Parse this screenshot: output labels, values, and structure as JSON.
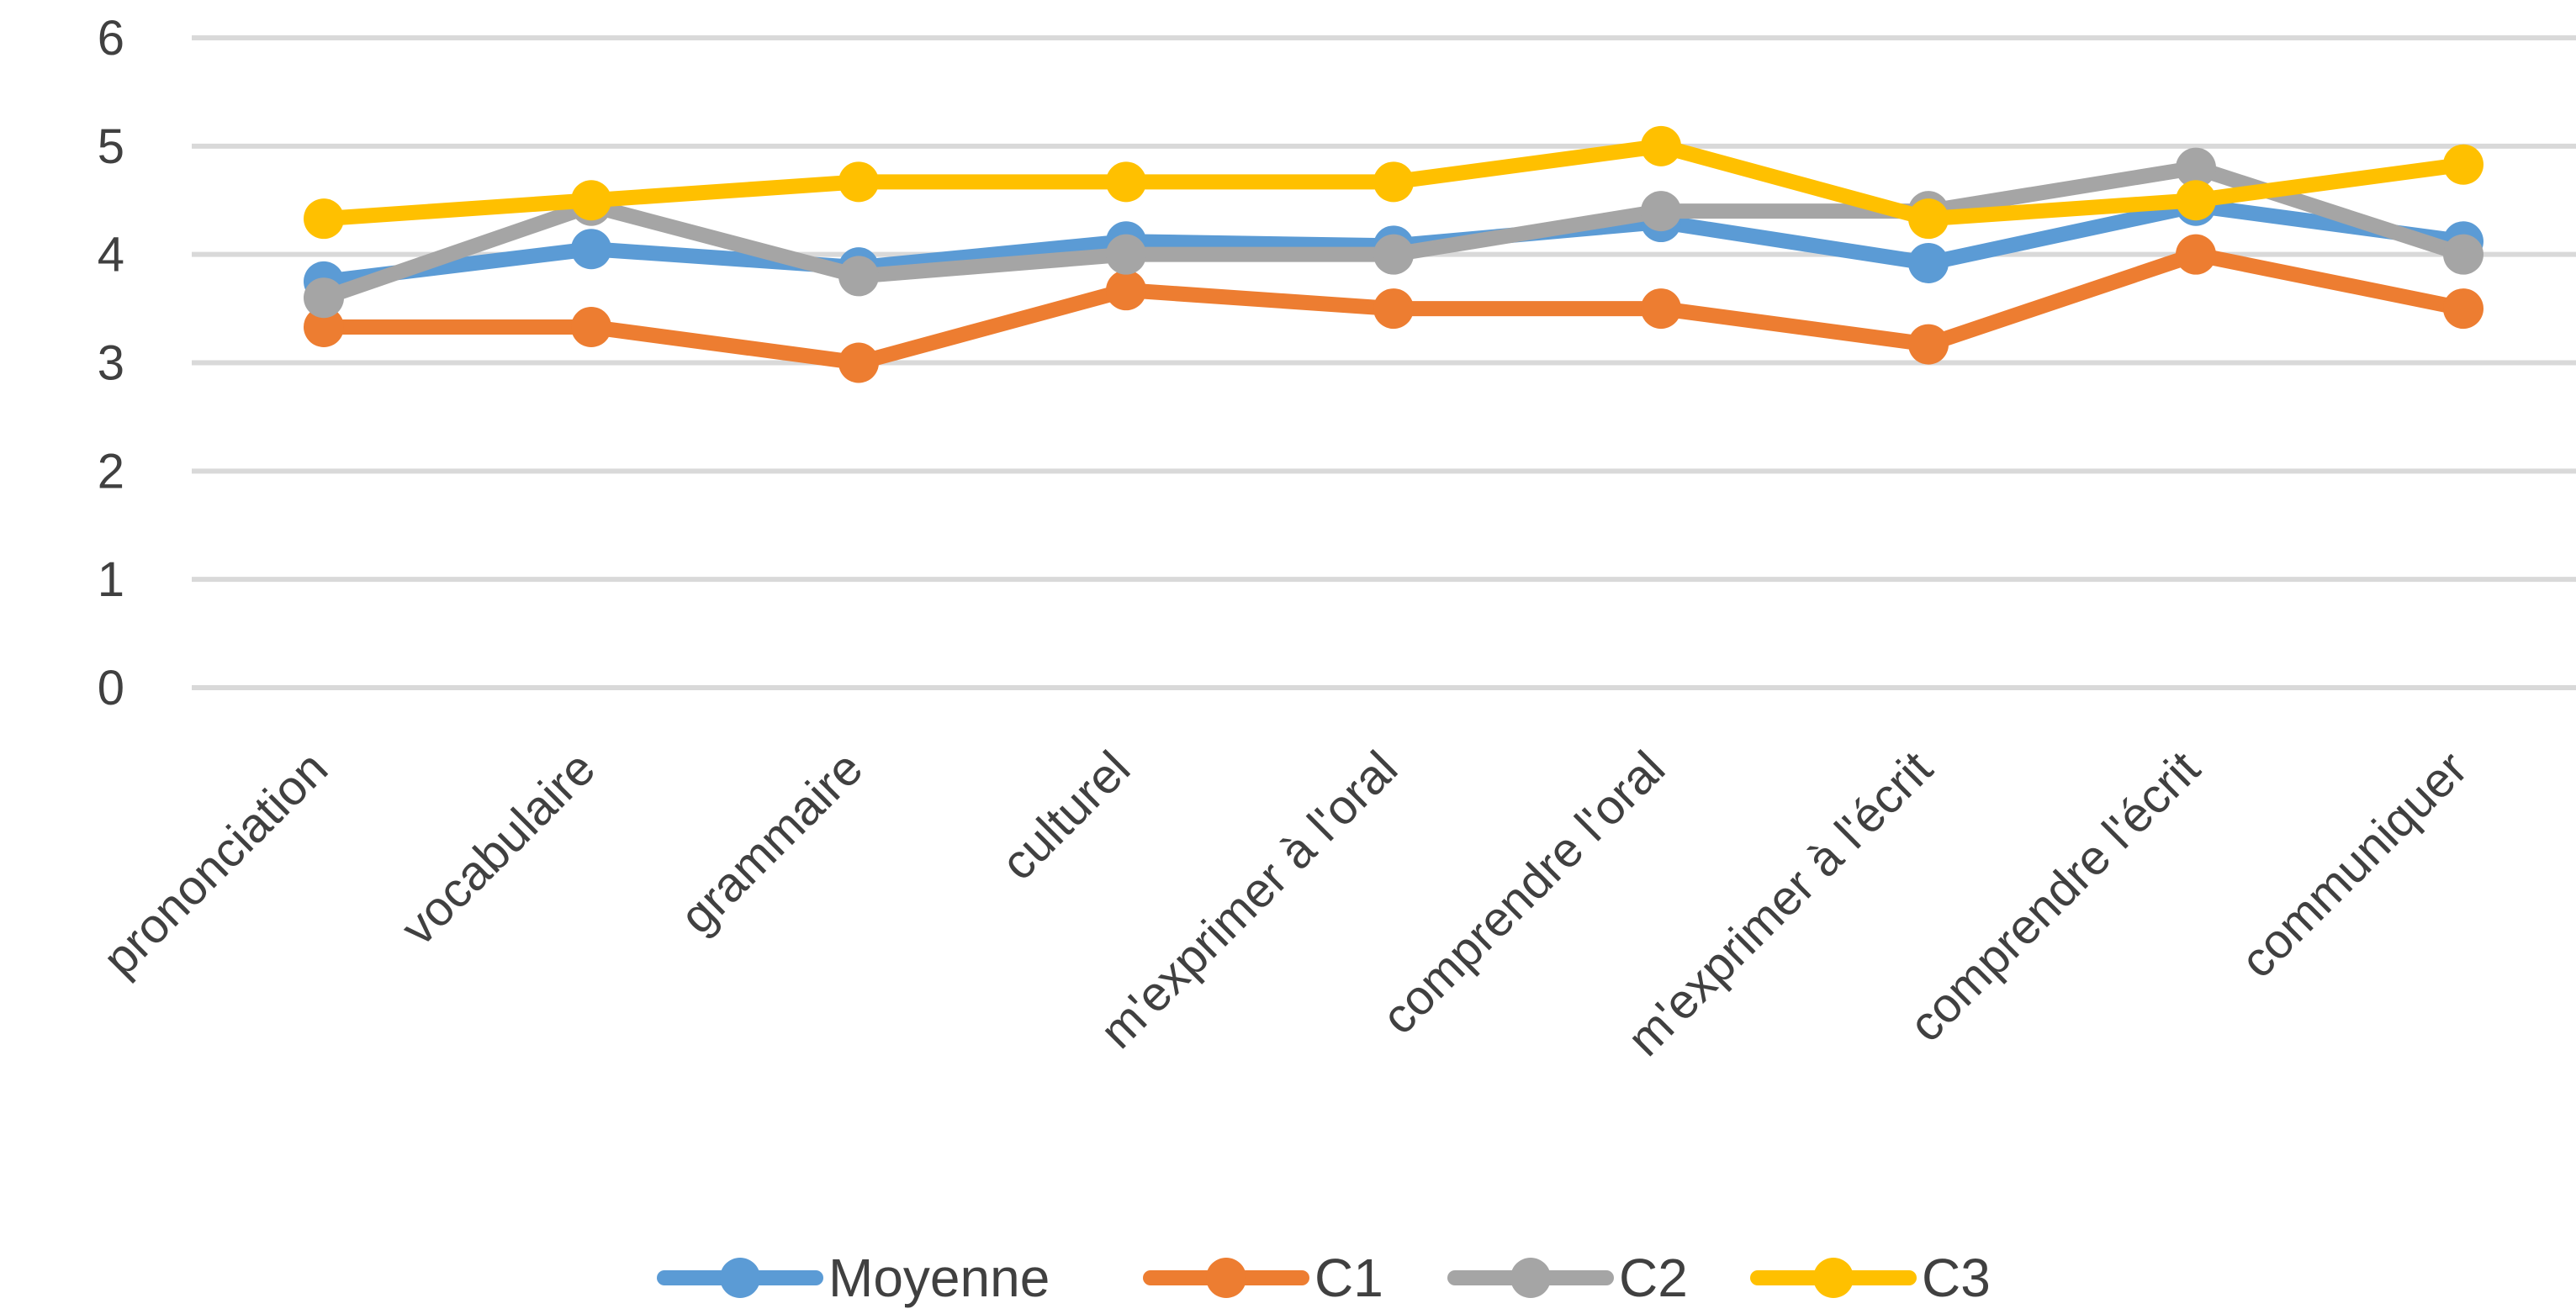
{
  "chart_data": {
    "type": "line",
    "title": "",
    "xlabel": "",
    "ylabel": "",
    "ylim": [
      0,
      6
    ],
    "yticks": [
      "0",
      "1",
      "2",
      "3",
      "4",
      "5",
      "6"
    ],
    "grid": true,
    "legend_position": "bottom",
    "categories": [
      "prononciation",
      "vocabulaire",
      "grammaire",
      "culturel",
      "m'exprimer à l'oral",
      "comprendre l'oral",
      "m'exprimer à l'écrit",
      "comprendre l'écrit",
      "communiquer"
    ],
    "series": [
      {
        "name": "Moyenne",
        "color": "#5b9bd5",
        "values": [
          3.75,
          4.05,
          3.88,
          4.12,
          4.08,
          4.3,
          3.92,
          4.45,
          4.12
        ]
      },
      {
        "name": "C1",
        "color": "#ed7d31",
        "values": [
          3.33,
          3.33,
          3.0,
          3.67,
          3.5,
          3.5,
          3.17,
          4.0,
          3.5
        ]
      },
      {
        "name": "C2",
        "color": "#a5a5a5",
        "values": [
          3.6,
          4.45,
          3.8,
          4.0,
          4.0,
          4.4,
          4.4,
          4.8,
          4.0
        ]
      },
      {
        "name": "C3",
        "color": "#ffc000",
        "values": [
          4.33,
          4.5,
          4.67,
          4.67,
          4.67,
          5.0,
          4.33,
          4.5,
          4.83
        ]
      }
    ]
  }
}
